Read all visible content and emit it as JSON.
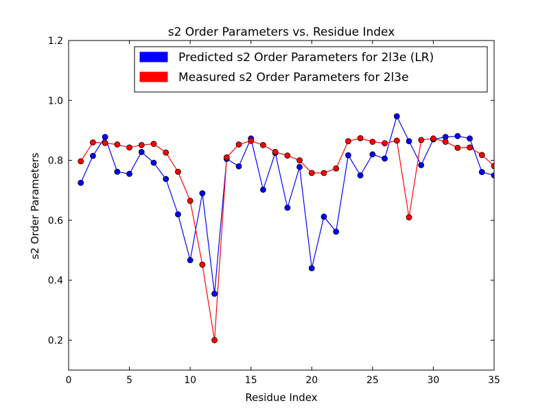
{
  "chart_data": {
    "type": "line",
    "title": "s2 Order Parameters vs. Residue Index",
    "xlabel": "Residue Index",
    "ylabel": "s2 Order Parameters",
    "xlim": [
      0,
      35
    ],
    "ylim": [
      0.1,
      1.2
    ],
    "xticks": [
      0,
      5,
      10,
      15,
      20,
      25,
      30,
      35
    ],
    "yticks": [
      0.2,
      0.4,
      0.6,
      0.8,
      1.0,
      1.2
    ],
    "ytick_labels": [
      "0.2",
      "0.4",
      "0.6",
      "0.8",
      "1.0",
      "1.2"
    ],
    "grid": false,
    "legend_position": "top-right",
    "x": [
      1,
      2,
      3,
      4,
      5,
      6,
      7,
      8,
      9,
      10,
      11,
      12,
      13,
      14,
      15,
      16,
      17,
      18,
      19,
      20,
      21,
      22,
      23,
      24,
      25,
      26,
      27,
      28,
      29,
      30,
      31,
      32,
      33,
      34,
      35
    ],
    "series": [
      {
        "name": "Predicted s2 Order Parameters for 2l3e (LR)",
        "color": "#0000ff",
        "values": [
          0.725,
          0.815,
          0.878,
          0.762,
          0.755,
          0.828,
          0.792,
          0.738,
          0.62,
          0.467,
          0.69,
          0.355,
          0.805,
          0.78,
          0.873,
          0.702,
          0.825,
          0.642,
          0.778,
          0.44,
          0.612,
          0.562,
          0.817,
          0.75,
          0.82,
          0.806,
          0.947,
          0.864,
          0.784,
          0.87,
          0.878,
          0.881,
          0.873,
          0.761,
          0.75
        ]
      },
      {
        "name": "Measured s2 Order Parameters for 2l3e",
        "color": "#ff0000",
        "values": [
          0.797,
          0.86,
          0.858,
          0.853,
          0.843,
          0.851,
          0.855,
          0.826,
          0.762,
          0.665,
          0.452,
          0.2,
          0.81,
          0.853,
          0.865,
          0.851,
          0.828,
          0.816,
          0.8,
          0.758,
          0.758,
          0.773,
          0.864,
          0.874,
          0.862,
          0.857,
          0.866,
          0.61,
          0.868,
          0.873,
          0.862,
          0.842,
          0.843,
          0.818,
          0.781
        ]
      }
    ]
  }
}
